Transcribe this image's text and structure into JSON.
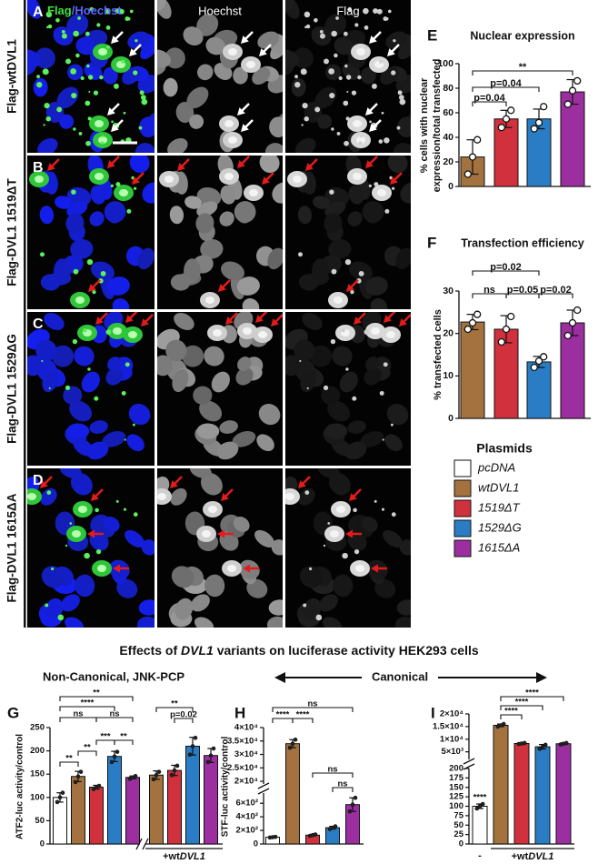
{
  "figure": {
    "merge_header": [
      "Flag",
      "/Hoechst"
    ],
    "columns": [
      "Hoechst",
      "Flag"
    ],
    "panels": [
      {
        "letter": "A",
        "label": "Flag-wtDVL1"
      },
      {
        "letter": "B",
        "label": "Flag-DVL1 1519ΔT"
      },
      {
        "letter": "C",
        "label": "Flag-DVL1 1529ΔG"
      },
      {
        "letter": "D",
        "label": "Flag-DVL1 1615ΔA"
      }
    ]
  },
  "legend": {
    "title": "Plasmids",
    "items": [
      {
        "label": "pcDNA",
        "color": "#ffffff"
      },
      {
        "label": "wtDVL1",
        "color": "#a4723f"
      },
      {
        "label": "1519ΔT",
        "color": "#d0313d"
      },
      {
        "label": "1529ΔG",
        "color": "#2a7dc4"
      },
      {
        "label": "1615ΔA",
        "color": "#9b2f9f"
      }
    ]
  },
  "heading": [
    "Effects of ",
    "DVL1",
    " variants on luciferase activity HEK293 cells"
  ],
  "sections": {
    "left": "Non-Canonical, JNK-PCP",
    "right": "Canonical"
  },
  "chart_data": [
    {
      "type": "bar",
      "panel": "E",
      "title": "Nuclear expression",
      "ylabel": [
        "% cells with nuclear",
        "expression/total transfected"
      ],
      "ylim": [
        0,
        100
      ],
      "yticks": [
        0,
        20,
        40,
        60,
        80,
        100
      ],
      "values": [
        24,
        55,
        55,
        77
      ],
      "errors": [
        14,
        7,
        8,
        10
      ],
      "points": [
        [
          10,
          24,
          38
        ],
        [
          48,
          55,
          62
        ],
        [
          47,
          52,
          65
        ],
        [
          67,
          78,
          86
        ]
      ],
      "colors": [
        "#a4723f",
        "#d0313d",
        "#2a7dc4",
        "#9b2f9f"
      ],
      "annotations": [
        "p=0.04",
        "p=0.04",
        "**"
      ]
    },
    {
      "type": "bar",
      "panel": "F",
      "title": "Transfection efficiency",
      "ylabel": "% transfected cells",
      "ylim": [
        0,
        30
      ],
      "yticks": [
        0,
        10,
        20,
        30
      ],
      "values": [
        22.7,
        21,
        13.3,
        22.5
      ],
      "errors": [
        1.8,
        3.2,
        1.3,
        3
      ],
      "points": [
        [
          21,
          22.5,
          24.5
        ],
        [
          18,
          21,
          24
        ],
        [
          12,
          13.5,
          14.5
        ],
        [
          19.5,
          22.5,
          25.5
        ]
      ],
      "colors": [
        "#a4723f",
        "#d0313d",
        "#2a7dc4",
        "#9b2f9f"
      ],
      "annotations": [
        "p=0.02",
        "ns",
        "p=0.05",
        "p=0.02"
      ]
    },
    {
      "type": "bar",
      "panel": "G",
      "ylabel": "ATF2-luc activity/control",
      "ylim": [
        0,
        250
      ],
      "yticks": [
        0,
        50,
        100,
        150,
        200,
        250
      ],
      "values": [
        100,
        145,
        122,
        188,
        143,
        148,
        158,
        210,
        190
      ],
      "errors": [
        10,
        11,
        4,
        11,
        3,
        9,
        11,
        19,
        15
      ],
      "points": [
        [
          90,
          100,
          110
        ],
        [
          133,
          145,
          155
        ],
        [
          118,
          122,
          125
        ],
        [
          176,
          188,
          198
        ],
        [
          140,
          143,
          146
        ],
        [
          139,
          148,
          155
        ],
        [
          148,
          158,
          168
        ],
        [
          192,
          210,
          228
        ],
        [
          176,
          190,
          205
        ]
      ],
      "colors": [
        "#ffffff",
        "#a4723f",
        "#d0313d",
        "#2a7dc4",
        "#9b2f9f",
        "#a4723f",
        "#d0313d",
        "#2a7dc4",
        "#9b2f9f"
      ],
      "annotations": [
        "**",
        "****",
        "ns",
        "ns",
        "**",
        "***",
        "**",
        "**",
        "**",
        "p=0.02"
      ],
      "group_label": [
        "+wt",
        "DVL1"
      ]
    },
    {
      "type": "bar",
      "panel": "H",
      "ylabel": "STF-luc activity/control",
      "segments": [
        {
          "ylim": [
            0,
            750
          ],
          "yticks": [
            0,
            {
              "value": 200,
              "label": "2×10²"
            },
            {
              "value": 400,
              "label": "4×10²"
            },
            {
              "value": 600,
              "label": "6×10²"
            }
          ]
        },
        {
          "ylim": [
            19000,
            40000
          ],
          "yticks": [
            {
              "value": 20000,
              "label": "2×10⁴"
            },
            {
              "value": 25000,
              "label": "2.5×10⁴"
            },
            {
              "value": 30000,
              "label": "3×10⁴"
            },
            {
              "value": 35000,
              "label": "3.5×10⁴"
            },
            {
              "value": 40000,
              "label": "4×10⁴"
            }
          ]
        }
      ],
      "values": [
        100,
        34000,
        130,
        240,
        580
      ],
      "errors": [
        5,
        1500,
        10,
        20,
        100
      ],
      "points": [
        [
          95,
          100,
          105
        ],
        [
          32500,
          34000,
          35500
        ],
        [
          120,
          130,
          140
        ],
        [
          220,
          240,
          260
        ],
        [
          480,
          580,
          680
        ]
      ],
      "colors": [
        "#ffffff",
        "#a4723f",
        "#d0313d",
        "#2a7dc4",
        "#9b2f9f"
      ],
      "annotations": [
        "ns",
        "****",
        "****",
        "ns",
        "ns"
      ]
    },
    {
      "type": "bar",
      "panel": "I",
      "segments": [
        {
          "ylim": [
            0,
            200
          ],
          "yticks": [
            0,
            25,
            50,
            75,
            100,
            125,
            150,
            175,
            200
          ]
        },
        {
          "ylim": [
            2000,
            20000
          ],
          "yticks": [
            {
              "value": 5000,
              "label": "5×10³"
            },
            {
              "value": 10000,
              "label": "1×10⁴"
            },
            {
              "value": 15000,
              "label": "1.5×10⁴"
            },
            {
              "value": 20000,
              "label": "2×10⁴"
            }
          ]
        }
      ],
      "values": [
        100,
        15500,
        8300,
        7000,
        8200
      ],
      "errors": [
        6,
        500,
        200,
        900,
        300
      ],
      "points": [
        [
          94,
          100,
          106
        ],
        [
          15000,
          15500,
          16000
        ],
        [
          8100,
          8300,
          8500
        ],
        [
          6200,
          7000,
          7800
        ],
        [
          7900,
          8200,
          8500
        ]
      ],
      "colors": [
        "#ffffff",
        "#a4723f",
        "#d0313d",
        "#2a7dc4",
        "#9b2f9f"
      ],
      "annotations": [
        "****",
        "****",
        "****",
        "****"
      ],
      "first_label": "-",
      "group_label": [
        "+wt",
        "DVL1"
      ]
    }
  ]
}
